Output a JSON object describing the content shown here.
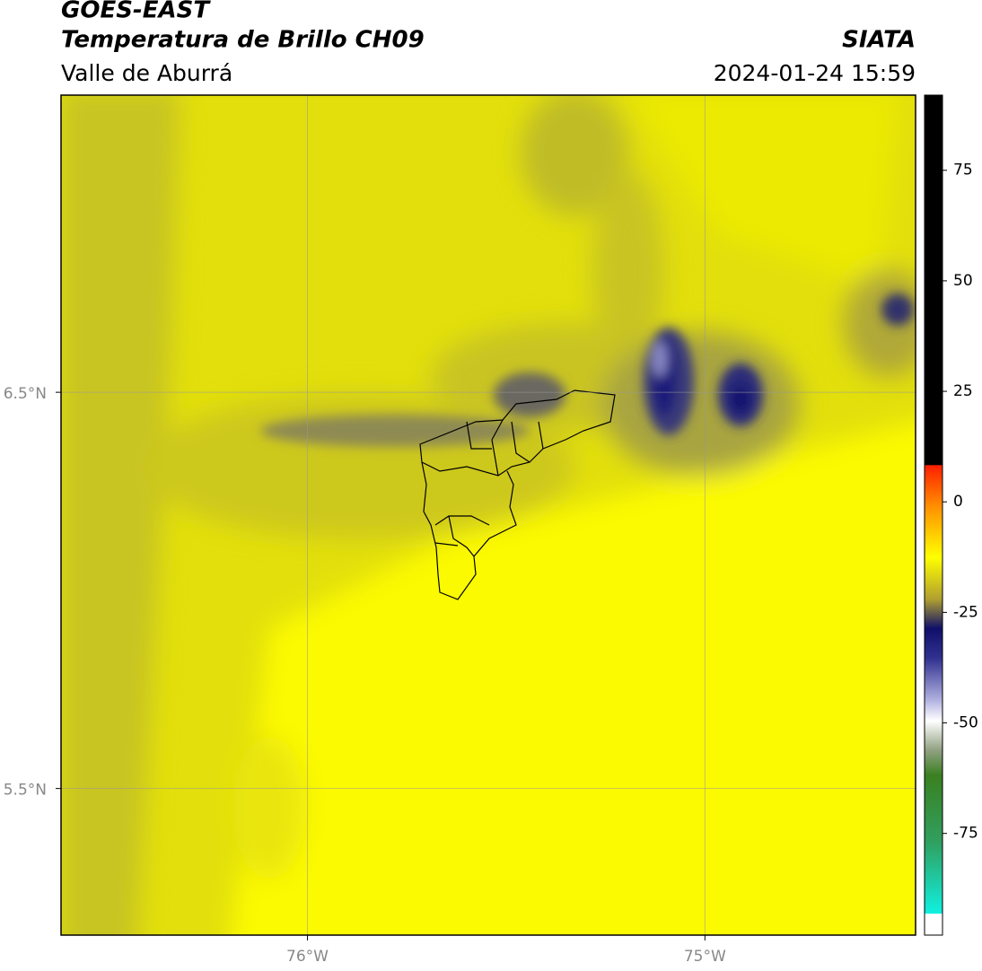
{
  "header": {
    "title": "GOES-EAST",
    "subtitle": "Temperatura de Brillo CH09",
    "source": "SIATA",
    "region": "Valle de Aburrá",
    "datetime": "2024-01-24 15:59"
  },
  "map": {
    "xlim": [
      -76.62,
      -74.47
    ],
    "ylim": [
      5.13,
      7.25
    ],
    "xticks": [
      {
        "value": -76,
        "label": "76°W"
      },
      {
        "value": -75,
        "label": "75°W"
      }
    ],
    "yticks": [
      {
        "value": 6.5,
        "label": "6.5°N"
      },
      {
        "value": 5.5,
        "label": "5.5°N"
      }
    ],
    "grid": true
  },
  "colorbar": {
    "lim": [
      -98,
      92
    ],
    "ticks": [
      75,
      50,
      25,
      0,
      -25,
      -50,
      -75
    ]
  }
}
